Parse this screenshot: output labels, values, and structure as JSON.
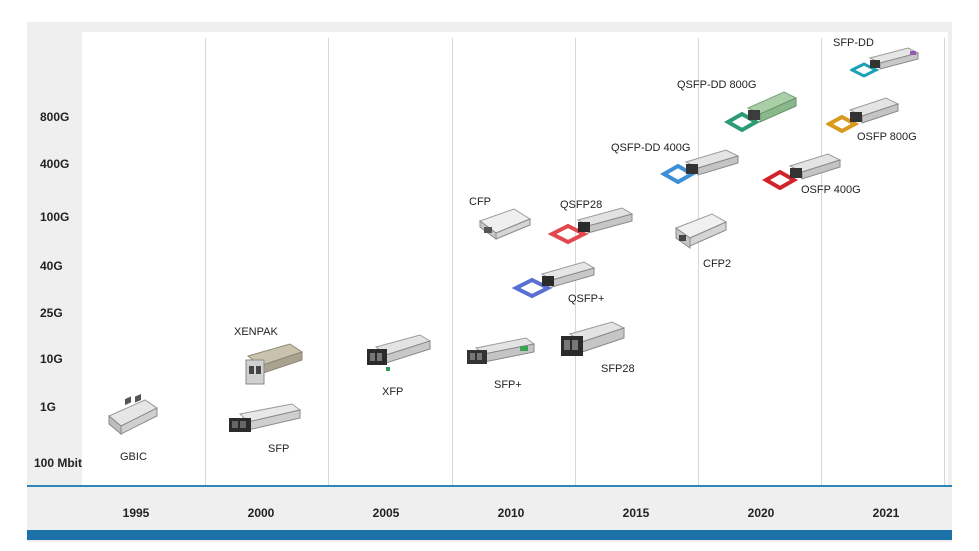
{
  "y_levels": [
    "800G",
    "400G",
    "100G",
    "40G",
    "25G",
    "10G",
    "1G",
    "100 Mbit"
  ],
  "x_years": [
    "1995",
    "2000",
    "2005",
    "2010",
    "2015",
    "2020",
    "2021"
  ],
  "products": {
    "gbic": "GBIC",
    "sfp": "SFP",
    "xenpak": "XENPAK",
    "xfp": "XFP",
    "sfp_plus": "SFP+",
    "cfp": "CFP",
    "qsfp_plus": "QSFP+",
    "qsfp28": "QSFP28",
    "sfp28": "SFP28",
    "qsfp_dd_400g": "QSFP-DD 400G",
    "cfp2": "CFP2",
    "qsfp_dd_800g": "QSFP-DD 800G",
    "osfp_400g": "OSFP 400G",
    "sfp_dd": "SFP-DD",
    "osfp_800g": "OSFP 800G"
  },
  "colors": {
    "axis_line": "#2d86b8",
    "bottom_bar": "#1c71a8",
    "qsfp28_pull_tab": "#e2474f",
    "qsfp_plus_pull_tab": "#5a6fd1",
    "qsfp_dd_400g_pull_tab": "#3a8fd6",
    "qsfp_dd_800g_pull_tab": "#2c9a72",
    "osfp_400g_pull_tab": "#d2232a",
    "sfp_dd_pull_tab": "#1aa0b8",
    "osfp_800g_pull_tab": "#d99a1d"
  }
}
